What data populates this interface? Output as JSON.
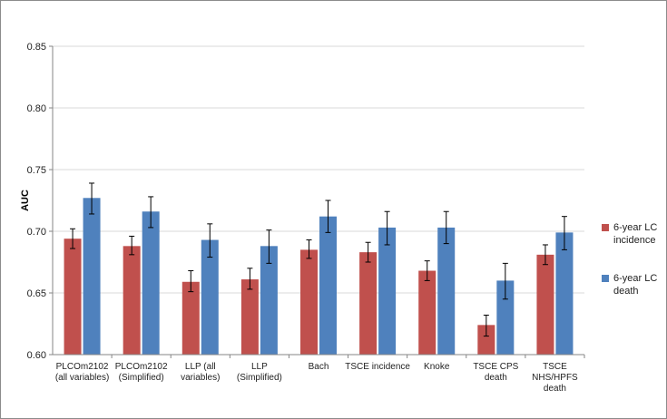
{
  "chart_data": {
    "type": "bar",
    "title": "",
    "xlabel": "",
    "ylabel": "AUC",
    "ylim": [
      0.6,
      0.85
    ],
    "yticks": [
      "0.60",
      "0.65",
      "0.70",
      "0.75",
      "0.80",
      "0.85"
    ],
    "grid": true,
    "legend_position": "right",
    "categories": [
      [
        "PLCOm2102",
        "(all variables)"
      ],
      [
        "PLCOm2102",
        "(Simplified)"
      ],
      [
        "LLP  (all",
        "variables)"
      ],
      [
        "LLP",
        "(Simplified)"
      ],
      [
        "Bach"
      ],
      [
        "TSCE incidence"
      ],
      [
        "Knoke"
      ],
      [
        "TSCE CPS",
        "death"
      ],
      [
        "TSCE",
        "NHS/HPFS",
        "death"
      ]
    ],
    "series": [
      {
        "name": [
          "6-year LC",
          "incidence"
        ],
        "color": "#c0504d",
        "values": [
          0.694,
          0.688,
          0.659,
          0.661,
          0.685,
          0.683,
          0.668,
          0.624,
          0.681
        ],
        "err_low": [
          0.686,
          0.681,
          0.651,
          0.653,
          0.678,
          0.675,
          0.66,
          0.615,
          0.673
        ],
        "err_high": [
          0.702,
          0.696,
          0.668,
          0.67,
          0.693,
          0.691,
          0.676,
          0.632,
          0.689
        ]
      },
      {
        "name": [
          "6-year LC",
          "death"
        ],
        "color": "#4f81bd",
        "values": [
          0.727,
          0.716,
          0.693,
          0.688,
          0.712,
          0.703,
          0.703,
          0.66,
          0.699
        ],
        "err_low": [
          0.714,
          0.703,
          0.679,
          0.674,
          0.699,
          0.689,
          0.69,
          0.645,
          0.685
        ],
        "err_high": [
          0.739,
          0.728,
          0.706,
          0.701,
          0.725,
          0.716,
          0.716,
          0.674,
          0.712
        ]
      }
    ]
  }
}
